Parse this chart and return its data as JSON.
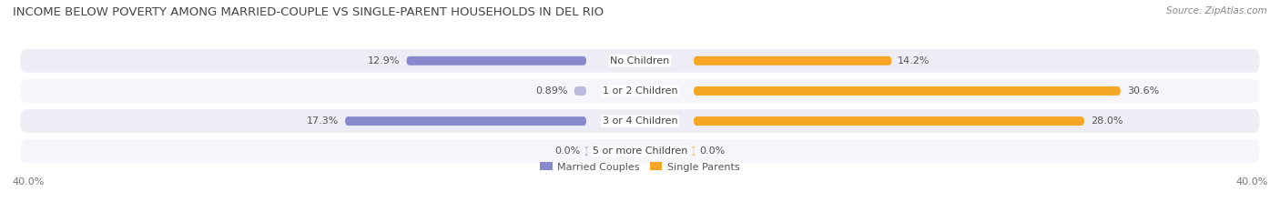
{
  "title": "INCOME BELOW POVERTY AMONG MARRIED-COUPLE VS SINGLE-PARENT HOUSEHOLDS IN DEL RIO",
  "source": "Source: ZipAtlas.com",
  "categories": [
    "No Children",
    "1 or 2 Children",
    "3 or 4 Children",
    "5 or more Children"
  ],
  "married_values": [
    12.9,
    0.89,
    17.3,
    0.0
  ],
  "single_values": [
    14.2,
    30.6,
    28.0,
    0.0
  ],
  "married_color": "#8888cc",
  "married_color_light": "#bbbbdd",
  "single_color": "#f5a623",
  "single_color_light": "#f9cc88",
  "axis_max": 40.0,
  "row_bg_even": "#ededf5",
  "row_bg_odd": "#f5f5fb",
  "title_color": "#444444",
  "value_color": "#555555",
  "axis_label_color": "#777777",
  "cat_label_color": "#444444",
  "legend_labels": [
    "Married Couples",
    "Single Parents"
  ],
  "title_fontsize": 9.5,
  "value_fontsize": 8,
  "category_fontsize": 8,
  "axis_fontsize": 8,
  "source_fontsize": 7.5
}
